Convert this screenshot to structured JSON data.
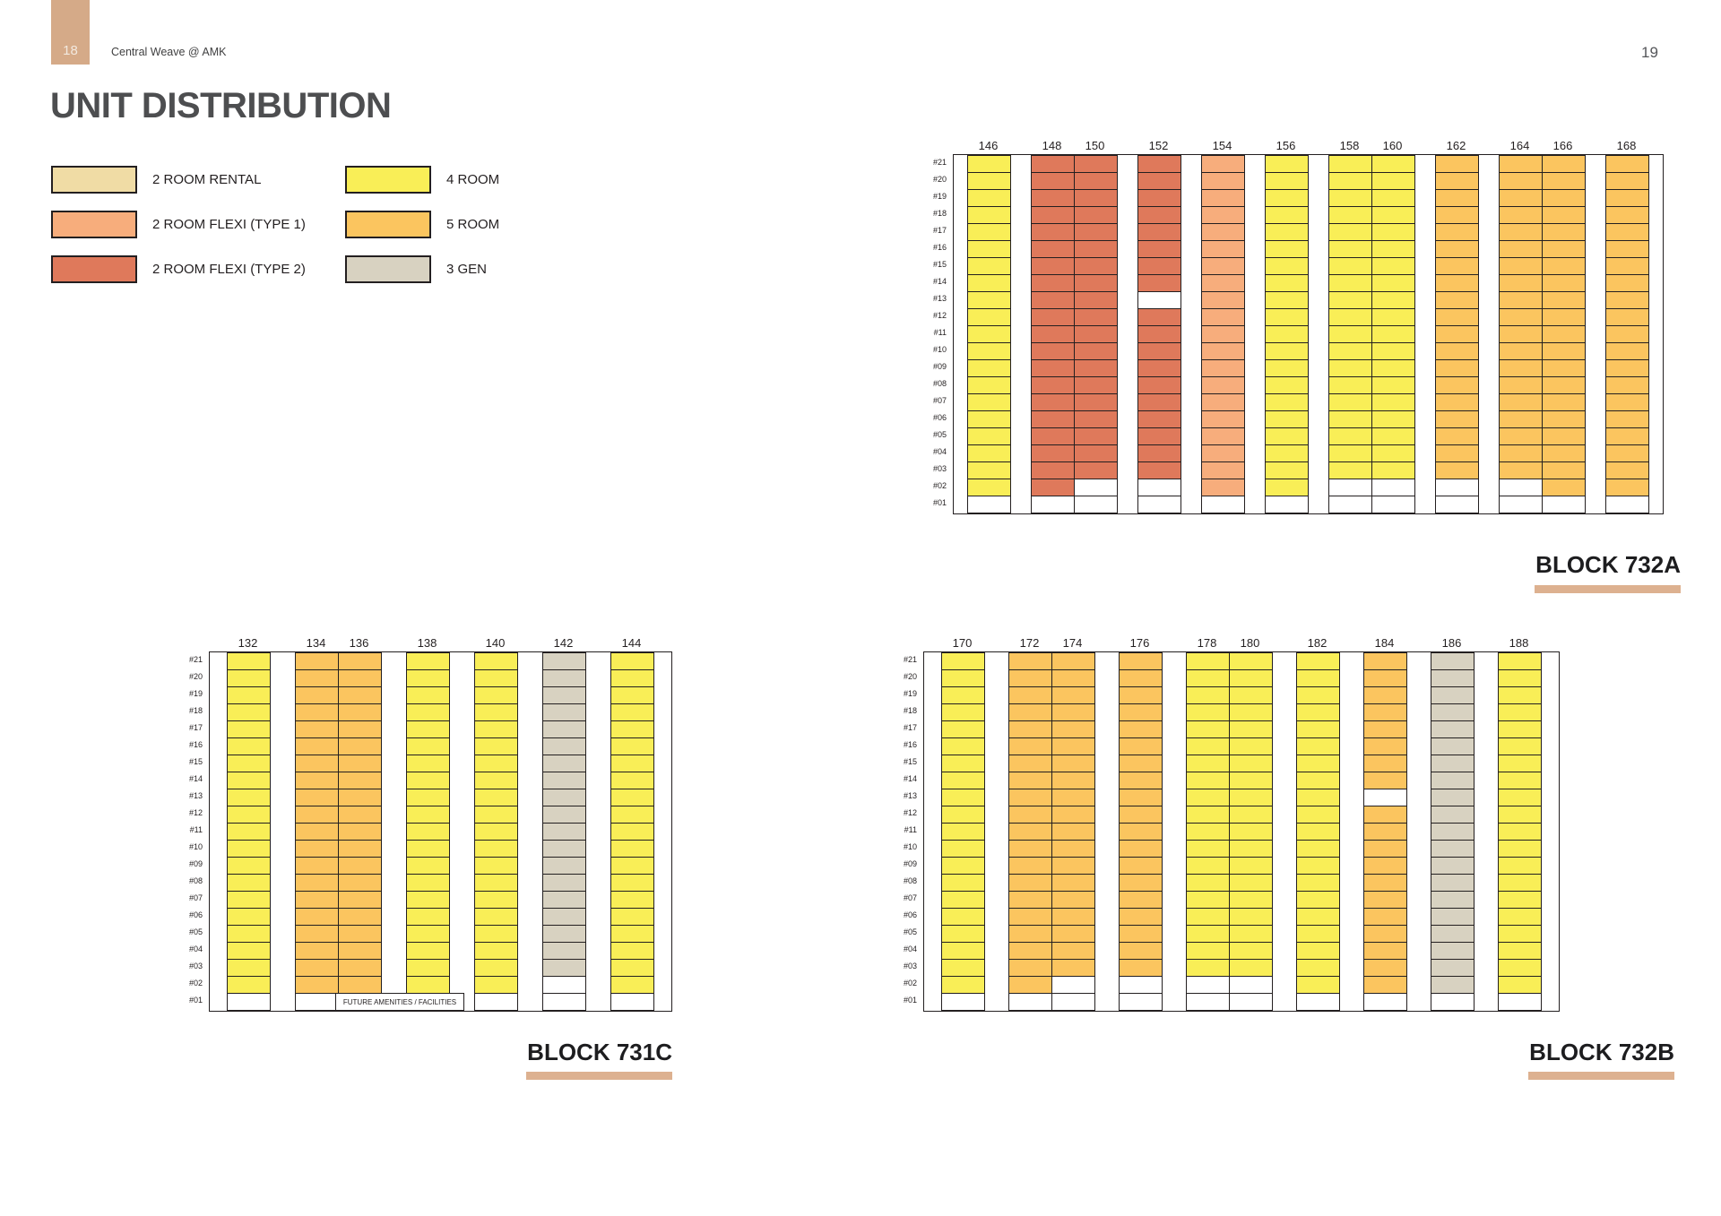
{
  "page": {
    "left_tab_number": "18",
    "right_page_number": "19",
    "brand": "Central Weave @ AMK",
    "title": "UNIT DISTRIBUTION"
  },
  "colors": {
    "accent": "#DDB190",
    "tab": "#D5AA88",
    "void": "#FFFFFF",
    "room2_rental": "#F0DCA5",
    "room2_flexi1": "#F7AD7C",
    "room2_flexi2": "#DF795B",
    "room4": "#F9EE57",
    "room5": "#FBC55F",
    "gen3": "#D8D2C1"
  },
  "legend": {
    "column1": [
      {
        "label": "2 ROOM RENTAL",
        "type": "room2_rental"
      },
      {
        "label": "2 ROOM FLEXI (TYPE 1)",
        "type": "room2_flexi1"
      },
      {
        "label": "2 ROOM FLEXI (TYPE 2)",
        "type": "room2_flexi2"
      }
    ],
    "column2": [
      {
        "label": "4 ROOM",
        "type": "room4"
      },
      {
        "label": "5 ROOM",
        "type": "room5"
      },
      {
        "label": "3 GEN",
        "type": "gen3"
      }
    ]
  },
  "floors": [
    "#21",
    "#20",
    "#19",
    "#18",
    "#17",
    "#16",
    "#15",
    "#14",
    "#13",
    "#12",
    "#11",
    "#10",
    "#09",
    "#08",
    "#07",
    "#06",
    "#05",
    "#04",
    "#03",
    "#02",
    "#01"
  ],
  "blocks": [
    {
      "id": "b732a",
      "name": "BLOCK 732A",
      "stack_groups": [
        [
          {
            "stack": "146",
            "type": "room4",
            "void_floors": [
              "#01"
            ]
          }
        ],
        [
          {
            "stack": "148",
            "type": "room2_flexi2",
            "void_floors": [
              "#01"
            ]
          },
          {
            "stack": "150",
            "type": "room2_flexi2",
            "void_floors": [
              "#02",
              "#01"
            ]
          }
        ],
        [
          {
            "stack": "152",
            "type": "room2_flexi2",
            "void_floors": [
              "#13",
              "#02",
              "#01"
            ]
          }
        ],
        [
          {
            "stack": "154",
            "type": "room2_flexi1",
            "void_floors": [
              "#01"
            ]
          }
        ],
        [
          {
            "stack": "156",
            "type": "room4",
            "void_floors": [
              "#01"
            ]
          }
        ],
        [
          {
            "stack": "158",
            "type": "room4",
            "void_floors": [
              "#02",
              "#01"
            ]
          },
          {
            "stack": "160",
            "type": "room4",
            "void_floors": [
              "#02",
              "#01"
            ]
          }
        ],
        [
          {
            "stack": "162",
            "type": "room5",
            "void_floors": [
              "#02",
              "#01"
            ]
          }
        ],
        [
          {
            "stack": "164",
            "type": "room5",
            "void_floors": [
              "#02",
              "#01"
            ]
          },
          {
            "stack": "166",
            "type": "room5",
            "void_floors": [
              "#01"
            ]
          }
        ],
        [
          {
            "stack": "168",
            "type": "room5",
            "void_floors": [
              "#01"
            ]
          }
        ]
      ]
    },
    {
      "id": "b731c",
      "name": "BLOCK 731C",
      "caption": "FUTURE AMENITIES / FACILITIES",
      "stack_groups": [
        [
          {
            "stack": "132",
            "type": "room4",
            "void_floors": [
              "#01"
            ]
          }
        ],
        [
          {
            "stack": "134",
            "type": "room5",
            "void_floors": [
              "#01"
            ]
          },
          {
            "stack": "136",
            "type": "room5",
            "void_floors": [
              "#01"
            ]
          }
        ],
        [
          {
            "stack": "138",
            "type": "room4",
            "void_floors": [
              "#01"
            ]
          }
        ],
        [
          {
            "stack": "140",
            "type": "room4",
            "void_floors": [
              "#01"
            ]
          }
        ],
        [
          {
            "stack": "142",
            "type": "gen3",
            "void_floors": [
              "#02",
              "#01"
            ]
          }
        ],
        [
          {
            "stack": "144",
            "type": "room4",
            "void_floors": [
              "#01"
            ]
          }
        ]
      ]
    },
    {
      "id": "b732b",
      "name": "BLOCK 732B",
      "stack_groups": [
        [
          {
            "stack": "170",
            "type": "room4",
            "void_floors": [
              "#01"
            ]
          }
        ],
        [
          {
            "stack": "172",
            "type": "room5",
            "void_floors": [
              "#01"
            ]
          },
          {
            "stack": "174",
            "type": "room5",
            "void_floors": [
              "#02",
              "#01"
            ]
          }
        ],
        [
          {
            "stack": "176",
            "type": "room5",
            "void_floors": [
              "#02",
              "#01"
            ]
          }
        ],
        [
          {
            "stack": "178",
            "type": "room4",
            "void_floors": [
              "#02",
              "#01"
            ]
          },
          {
            "stack": "180",
            "type": "room4",
            "void_floors": [
              "#02",
              "#01"
            ]
          }
        ],
        [
          {
            "stack": "182",
            "type": "room4",
            "void_floors": [
              "#01"
            ]
          }
        ],
        [
          {
            "stack": "184",
            "type": "room5",
            "void_floors": [
              "#13",
              "#01"
            ]
          }
        ],
        [
          {
            "stack": "186",
            "type": "gen3",
            "void_floors": [
              "#01"
            ]
          }
        ],
        [
          {
            "stack": "188",
            "type": "room4",
            "void_floors": [
              "#01"
            ]
          }
        ]
      ]
    }
  ]
}
